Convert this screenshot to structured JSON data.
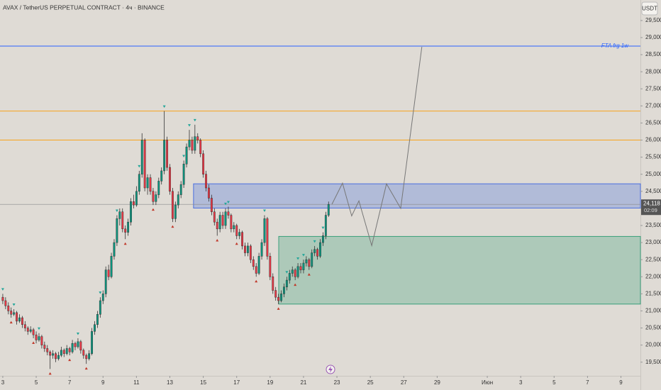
{
  "chart_data": {
    "type": "candlestick",
    "title": "AVAX / TetherUS PERPETUAL CONTRACT · 4ч · BINANCE",
    "currency_button": "USDT",
    "up_color": "#089981",
    "down_color": "#f23645",
    "candles": [
      [
        21400,
        21500,
        21200,
        21300
      ],
      [
        21300,
        21400,
        21050,
        21150
      ],
      [
        21150,
        21250,
        20900,
        21000
      ],
      [
        21000,
        21100,
        20800,
        20900
      ],
      [
        20900,
        21050,
        20850,
        20950
      ],
      [
        20950,
        21000,
        20600,
        20700
      ],
      [
        20700,
        20900,
        20650,
        20800
      ],
      [
        20800,
        20850,
        20500,
        20600
      ],
      [
        20600,
        20700,
        20400,
        20500
      ],
      [
        20500,
        20550,
        20300,
        20400
      ],
      [
        20400,
        20550,
        20350,
        20450
      ],
      [
        20450,
        20500,
        20200,
        20300
      ],
      [
        20300,
        20400,
        20050,
        20150
      ],
      [
        20150,
        20350,
        20100,
        20250
      ],
      [
        20250,
        20300,
        19900,
        20000
      ],
      [
        20000,
        20100,
        19800,
        19900
      ],
      [
        19900,
        20000,
        19700,
        19800
      ],
      [
        19800,
        19850,
        19300,
        19700
      ],
      [
        19700,
        19850,
        19600,
        19750
      ],
      [
        19750,
        19800,
        19500,
        19600
      ],
      [
        19600,
        19800,
        19550,
        19700
      ],
      [
        19700,
        19950,
        19650,
        19850
      ],
      [
        19850,
        19900,
        19650,
        19750
      ],
      [
        19750,
        20000,
        19700,
        19900
      ],
      [
        19900,
        19950,
        19700,
        19800
      ],
      [
        19800,
        20150,
        19750,
        20050
      ],
      [
        20050,
        20100,
        19850,
        19950
      ],
      [
        19950,
        20200,
        19900,
        20100
      ],
      [
        20100,
        20150,
        19750,
        19850
      ],
      [
        19850,
        19900,
        19600,
        19700
      ],
      [
        19700,
        19750,
        19450,
        19600
      ],
      [
        19600,
        19850,
        19550,
        19750
      ],
      [
        19750,
        20500,
        19700,
        20400
      ],
      [
        20400,
        20700,
        20300,
        20600
      ],
      [
        20600,
        21000,
        20500,
        20900
      ],
      [
        20900,
        21400,
        20800,
        21300
      ],
      [
        21300,
        21600,
        21200,
        21500
      ],
      [
        21500,
        22300,
        21400,
        22200
      ],
      [
        22200,
        22350,
        21900,
        22000
      ],
      [
        22000,
        22700,
        21950,
        22600
      ],
      [
        22600,
        23100,
        22500,
        23000
      ],
      [
        23000,
        23800,
        22900,
        23700
      ],
      [
        23700,
        24000,
        23500,
        23900
      ],
      [
        23900,
        24000,
        23300,
        23400
      ],
      [
        23400,
        23500,
        23100,
        23300
      ],
      [
        23300,
        23700,
        23200,
        23600
      ],
      [
        23600,
        24300,
        23500,
        24200
      ],
      [
        24200,
        24400,
        24000,
        24100
      ],
      [
        24100,
        24650,
        24050,
        24500
      ],
      [
        24500,
        25100,
        24400,
        25000
      ],
      [
        25000,
        26200,
        24900,
        26000
      ],
      [
        26000,
        26050,
        24500,
        24600
      ],
      [
        24600,
        25000,
        24400,
        24900
      ],
      [
        24900,
        25000,
        24400,
        24500
      ],
      [
        24500,
        24600,
        24100,
        24200
      ],
      [
        24200,
        24500,
        24100,
        24400
      ],
      [
        24400,
        24900,
        24300,
        24800
      ],
      [
        24800,
        25200,
        24700,
        25100
      ],
      [
        25100,
        26850,
        25000,
        26000
      ],
      [
        26000,
        26100,
        25100,
        25200
      ],
      [
        25200,
        25300,
        24400,
        24500
      ],
      [
        24500,
        24600,
        23600,
        23700
      ],
      [
        23700,
        24200,
        23600,
        24100
      ],
      [
        24100,
        24500,
        24000,
        24400
      ],
      [
        24400,
        24800,
        24300,
        24700
      ],
      [
        24700,
        25400,
        24600,
        25300
      ],
      [
        25300,
        25900,
        25200,
        25800
      ],
      [
        25800,
        26300,
        25700,
        26000
      ],
      [
        26000,
        26100,
        25600,
        25700
      ],
      [
        25700,
        26450,
        25600,
        26100
      ],
      [
        26100,
        26200,
        25900,
        26000
      ],
      [
        26000,
        26050,
        25500,
        25600
      ],
      [
        25600,
        25700,
        24900,
        25000
      ],
      [
        25000,
        25100,
        24500,
        24600
      ],
      [
        24600,
        24700,
        24200,
        24300
      ],
      [
        24300,
        24400,
        23800,
        23900
      ],
      [
        23900,
        24000,
        23500,
        23600
      ],
      [
        23600,
        23700,
        23200,
        23400
      ],
      [
        23400,
        23900,
        23300,
        23800
      ],
      [
        23800,
        23900,
        23400,
        23500
      ],
      [
        23500,
        24000,
        23400,
        23900
      ],
      [
        23900,
        24050,
        23700,
        23800
      ],
      [
        23800,
        23850,
        23300,
        23400
      ],
      [
        23400,
        23600,
        23300,
        23500
      ],
      [
        23500,
        23550,
        23100,
        23200
      ],
      [
        23200,
        23400,
        23100,
        23300
      ],
      [
        23300,
        23350,
        22800,
        22900
      ],
      [
        22900,
        23000,
        22600,
        22700
      ],
      [
        22700,
        23000,
        22600,
        22900
      ],
      [
        22900,
        22950,
        22400,
        22500
      ],
      [
        22500,
        22600,
        22200,
        22300
      ],
      [
        22300,
        22400,
        22000,
        22100
      ],
      [
        22100,
        22700,
        22050,
        22600
      ],
      [
        22600,
        23100,
        22500,
        23000
      ],
      [
        23000,
        23800,
        22900,
        23700
      ],
      [
        23700,
        23750,
        22500,
        22600
      ],
      [
        22600,
        22700,
        21900,
        22000
      ],
      [
        22000,
        22100,
        21500,
        21600
      ],
      [
        21600,
        21700,
        21300,
        21400
      ],
      [
        21400,
        21500,
        21200,
        21300
      ],
      [
        21300,
        21600,
        21250,
        21500
      ],
      [
        21500,
        21800,
        21400,
        21700
      ],
      [
        21700,
        22000,
        21600,
        21900
      ],
      [
        21900,
        22200,
        21800,
        22100
      ],
      [
        22100,
        22300,
        22000,
        22200
      ],
      [
        22200,
        22250,
        21900,
        22000
      ],
      [
        22000,
        22400,
        21950,
        22300
      ],
      [
        22300,
        22400,
        22100,
        22200
      ],
      [
        22200,
        22500,
        22100,
        22400
      ],
      [
        22400,
        22600,
        22300,
        22500
      ],
      [
        22500,
        22550,
        22200,
        22300
      ],
      [
        22300,
        22800,
        22250,
        22700
      ],
      [
        22700,
        22900,
        22600,
        22800
      ],
      [
        22800,
        22850,
        22500,
        22600
      ],
      [
        22600,
        23100,
        22550,
        23000
      ],
      [
        23000,
        23300,
        22900,
        23200
      ],
      [
        23200,
        23900,
        23100,
        23800
      ],
      [
        23800,
        24200,
        23750,
        24118
      ]
    ],
    "fractal_highs": [
      0,
      4,
      13,
      27,
      35,
      41,
      49,
      58,
      65,
      67,
      69,
      80,
      81,
      94,
      102,
      106,
      108,
      112,
      115
    ],
    "fractal_lows": [
      3,
      11,
      17,
      24,
      30,
      44,
      54,
      61,
      77,
      84,
      91,
      99,
      105,
      110
    ],
    "levels": [
      {
        "value": 28750,
        "color": "#2962ff",
        "label": "FTA frg 1w"
      },
      {
        "value": 26850,
        "color": "#f7a21b"
      },
      {
        "value": 26000,
        "color": "#f7a21b"
      }
    ],
    "zones": [
      {
        "x_start": 68.5,
        "y": [
          24010,
          24720
        ],
        "color": "#4a6fe0"
      },
      {
        "x_start": 99.1,
        "y": [
          21200,
          23180
        ],
        "color": "#3aa07a"
      }
    ],
    "projection": {
      "x": [
        118.2,
        122,
        125.3,
        127.9,
        132.5,
        137.8,
        142.9,
        150.5
      ],
      "y": [
        24120,
        24740,
        23780,
        24220,
        22910,
        24720,
        24000,
        28730
      ]
    },
    "last_price": {
      "value": 24118,
      "label": "24,118"
    },
    "countdown": "02:09",
    "xlim": [
      -1,
      229
    ],
    "xticks": [
      {
        "value": 0,
        "label": "3"
      },
      {
        "value": 12,
        "label": "5"
      },
      {
        "value": 24,
        "label": "7"
      },
      {
        "value": 36,
        "label": "9"
      },
      {
        "value": 48,
        "label": "11"
      },
      {
        "value": 60,
        "label": "13"
      },
      {
        "value": 72,
        "label": "15"
      },
      {
        "value": 84,
        "label": "17"
      },
      {
        "value": 96,
        "label": "19"
      },
      {
        "value": 108,
        "label": "21"
      },
      {
        "value": 120,
        "label": "23"
      },
      {
        "value": 132,
        "label": "25"
      },
      {
        "value": 144,
        "label": "27"
      },
      {
        "value": 156,
        "label": "29"
      },
      {
        "value": 174,
        "label": "Июн"
      },
      {
        "value": 186,
        "label": "3"
      },
      {
        "value": 198,
        "label": "5"
      },
      {
        "value": 210,
        "label": "7"
      },
      {
        "value": 222,
        "label": "9"
      }
    ],
    "ylim": [
      19100,
      30100
    ],
    "yticks": [
      {
        "value": 19500,
        "label": "19,500"
      },
      {
        "value": 20000,
        "label": "20,000"
      },
      {
        "value": 20500,
        "label": "20,500"
      },
      {
        "value": 21000,
        "label": "21,000"
      },
      {
        "value": 21500,
        "label": "21,500"
      },
      {
        "value": 22000,
        "label": "22,000"
      },
      {
        "value": 22500,
        "label": "22,500"
      },
      {
        "value": 23000,
        "label": "23,000"
      },
      {
        "value": 23500,
        "label": "23,500"
      },
      {
        "value": 24000,
        "label": "24,000"
      },
      {
        "value": 24500,
        "label": "24,500"
      },
      {
        "value": 25000,
        "label": "25,000"
      },
      {
        "value": 25500,
        "label": "25,500"
      },
      {
        "value": 26000,
        "label": "26,000"
      },
      {
        "value": 26500,
        "label": "26,500"
      },
      {
        "value": 27000,
        "label": "27,000"
      },
      {
        "value": 27500,
        "label": "27,500"
      },
      {
        "value": 28000,
        "label": "28,000"
      },
      {
        "value": 28500,
        "label": "28,500"
      },
      {
        "value": 29000,
        "label": "29,000"
      },
      {
        "value": 29500,
        "label": "29,500"
      }
    ]
  }
}
